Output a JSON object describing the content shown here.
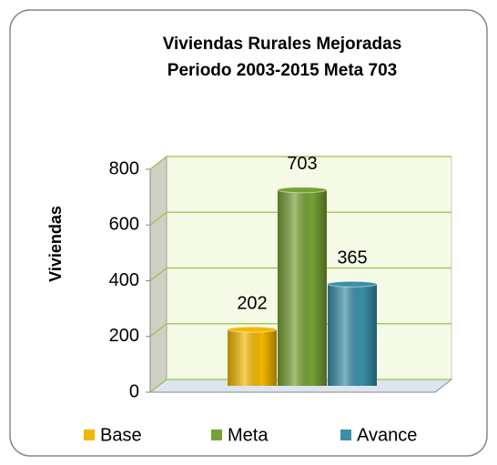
{
  "chart_data": {
    "type": "bar3d",
    "title": [
      "Viviendas Rurales Mejoradas",
      "Periodo 2003-2015 Meta 703"
    ],
    "ylabel": "Viviendas",
    "categories": [
      "Base",
      "Meta",
      "Avance"
    ],
    "values": [
      202,
      703,
      365
    ],
    "colors": [
      "#f2b800",
      "#76a035",
      "#3a8ea8"
    ],
    "ylim": [
      0,
      800
    ],
    "yticks": [
      0,
      200,
      400,
      600,
      800
    ],
    "grid": true,
    "legend": "bottom"
  }
}
